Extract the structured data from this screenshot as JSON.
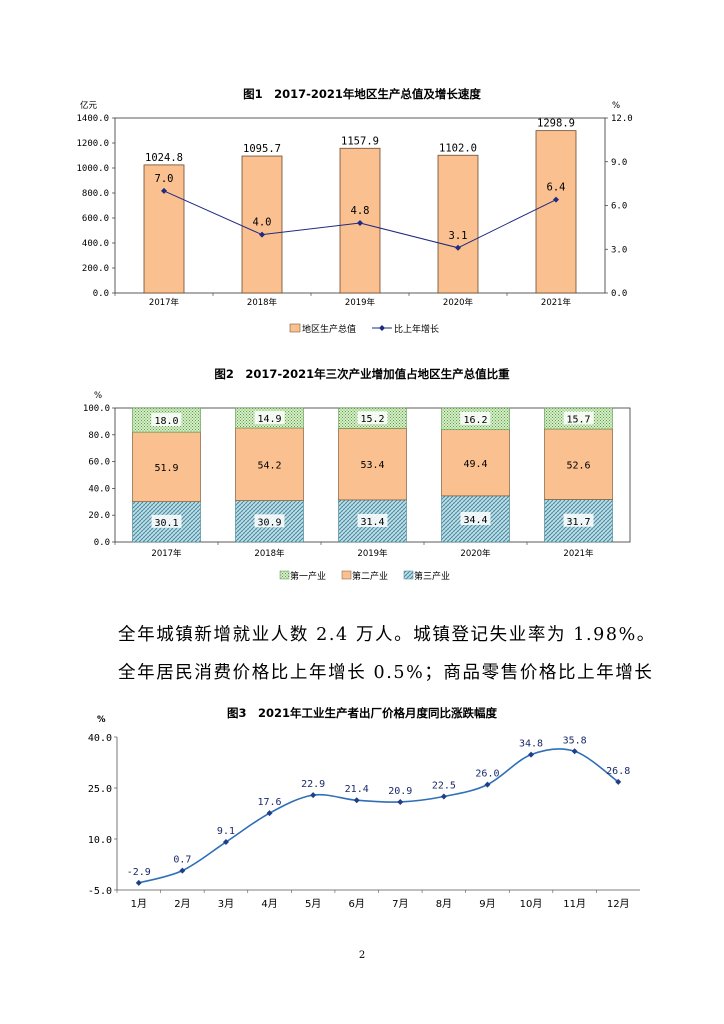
{
  "charts": {
    "chart1": {
      "title": "图1　2017-2021年地区生产总值及增长速度",
      "left_unit": "亿元",
      "right_unit": "%",
      "legend": [
        "地区生产总值",
        "比上年增长"
      ]
    },
    "chart2": {
      "title": "图2　2017-2021年三次产业增加值占地区生产总值比重",
      "unit": "%",
      "legend": [
        "第一产业",
        "第二产业",
        "第三产业"
      ]
    },
    "chart3": {
      "title": "图3　2021年工业生产者出厂价格月度同比涨跌幅度",
      "unit": "%"
    }
  },
  "chart_data": [
    {
      "type": "bar",
      "categories": [
        "2017年",
        "2018年",
        "2019年",
        "2020年",
        "2021年"
      ],
      "series": [
        {
          "name": "地区生产总值",
          "type": "bar",
          "axis": "left",
          "values": [
            1024.8,
            1095.7,
            1157.9,
            1102.0,
            1298.9
          ],
          "labels": [
            "1024.8",
            "1095.7",
            "1157.9",
            "1102.0",
            "1298.9"
          ],
          "color": "#fac090"
        },
        {
          "name": "比上年增长",
          "type": "line",
          "axis": "right",
          "values": [
            7.0,
            4.0,
            4.8,
            3.1,
            6.4
          ],
          "labels": [
            "7.0",
            "4.0",
            "4.8",
            "3.1",
            "6.4"
          ],
          "color": "#1f2a80"
        }
      ],
      "yticks_left": [
        "0.0",
        "200.0",
        "400.0",
        "600.0",
        "800.0",
        "1000.0",
        "1200.0",
        "1400.0"
      ],
      "ylim_left": [
        0,
        1400
      ],
      "yticks_right": [
        "0.0",
        "3.0",
        "6.0",
        "9.0",
        "12.0"
      ],
      "ylim_right": [
        0,
        12
      ],
      "legend_position": "bottom"
    },
    {
      "type": "bar",
      "stacked": true,
      "categories": [
        "2017年",
        "2018年",
        "2019年",
        "2020年",
        "2021年"
      ],
      "series": [
        {
          "name": "第三产业",
          "values": [
            30.1,
            30.9,
            31.4,
            34.4,
            31.7
          ],
          "labels": [
            "30.1",
            "30.9",
            "31.4",
            "34.4",
            "31.7"
          ],
          "color": "#b7dee8"
        },
        {
          "name": "第二产业",
          "values": [
            51.9,
            54.2,
            53.4,
            49.4,
            52.6
          ],
          "labels": [
            "51.9",
            "54.2",
            "53.4",
            "49.4",
            "52.6"
          ],
          "color": "#fac090"
        },
        {
          "name": "第一产业",
          "values": [
            18.0,
            14.9,
            15.2,
            16.2,
            15.7
          ],
          "labels": [
            "18.0",
            "14.9",
            "15.2",
            "16.2",
            "15.7"
          ],
          "color": "#c4e6b4"
        }
      ],
      "yticks": [
        "0.0",
        "20.0",
        "40.0",
        "60.0",
        "80.0",
        "100.0"
      ],
      "ylim": [
        0,
        100
      ],
      "legend_position": "bottom"
    },
    {
      "type": "line",
      "categories": [
        "1月",
        "2月",
        "3月",
        "4月",
        "5月",
        "6月",
        "7月",
        "8月",
        "9月",
        "10月",
        "11月",
        "12月"
      ],
      "values": [
        -2.9,
        0.7,
        9.1,
        17.6,
        22.9,
        21.4,
        20.9,
        22.5,
        26.0,
        34.8,
        35.8,
        26.8
      ],
      "labels": [
        "-2.9",
        "0.7",
        "9.1",
        "17.6",
        "22.9",
        "21.4",
        "20.9",
        "22.5",
        "26.0",
        "34.8",
        "35.8",
        "26.8"
      ],
      "yticks": [
        "-5.0",
        "10.0",
        "25.0",
        "40.0"
      ],
      "ylim": [
        -5,
        40
      ],
      "color": "#2e6fb7"
    }
  ],
  "text": {
    "line1": "全年城镇新增就业人数 2.4 万人。城镇登记失业率为 1.98%。",
    "line2": "全年居民消费价格比上年增长 0.5%；商品零售价格比上年增长",
    "page_number": "2"
  }
}
